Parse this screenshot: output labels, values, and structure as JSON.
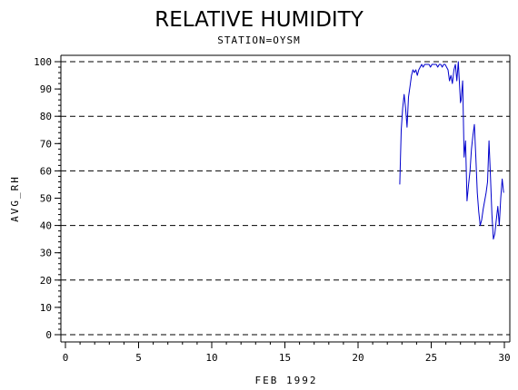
{
  "chart_data": {
    "type": "line",
    "title": "RELATIVE HUMIDITY",
    "subtitle": "STATION=OYSM",
    "xlabel": "FEB 1992",
    "ylabel": "AVG_RH",
    "xlim": [
      0,
      30
    ],
    "ylim": [
      0,
      100
    ],
    "x_ticks": [
      0,
      5,
      10,
      15,
      20,
      25,
      30
    ],
    "y_ticks": [
      0,
      10,
      20,
      30,
      40,
      50,
      60,
      70,
      80,
      90,
      100
    ],
    "grid_lines_y": [
      0,
      20,
      40,
      60,
      80,
      100
    ],
    "grid_style": "dashed horizontal",
    "series": [
      {
        "color": "#0000cc",
        "x": [
          22.85,
          22.95,
          23.05,
          23.15,
          23.25,
          23.35,
          23.45,
          23.55,
          23.65,
          23.75,
          23.85,
          23.95,
          24.05,
          24.15,
          24.25,
          24.35,
          24.45,
          24.55,
          24.65,
          24.75,
          24.85,
          24.95,
          25.05,
          25.15,
          25.25,
          25.35,
          25.45,
          25.55,
          25.65,
          25.75,
          25.85,
          25.95,
          26.05,
          26.15,
          26.25,
          26.35,
          26.45,
          26.55,
          26.65,
          26.75,
          26.85,
          26.95,
          27.0,
          27.05,
          27.15,
          27.25,
          27.35,
          27.45,
          27.55,
          27.65,
          27.75,
          27.85,
          27.95,
          28.05,
          28.15,
          28.25,
          28.35,
          28.45,
          28.55,
          28.65,
          28.75,
          28.85,
          28.95,
          29.05,
          29.15,
          29.25,
          29.35,
          29.45,
          29.55,
          29.65,
          29.75,
          29.85,
          29.95
        ],
        "y": [
          55,
          75,
          83,
          88,
          83,
          76,
          87,
          91,
          95,
          97,
          96,
          97,
          95,
          97,
          98,
          99,
          98,
          99,
          99,
          99,
          99,
          98,
          99,
          99,
          99,
          99,
          98,
          99,
          99,
          98,
          99,
          99,
          98,
          97,
          93,
          95,
          92,
          97,
          99,
          93,
          100,
          90,
          85,
          86,
          93,
          65,
          71,
          49,
          55,
          60,
          68,
          73,
          77,
          65,
          52,
          45,
          40,
          42,
          46,
          49,
          52,
          56,
          71,
          58,
          44,
          35,
          37,
          42,
          47,
          40,
          50,
          57,
          52
        ]
      }
    ]
  }
}
